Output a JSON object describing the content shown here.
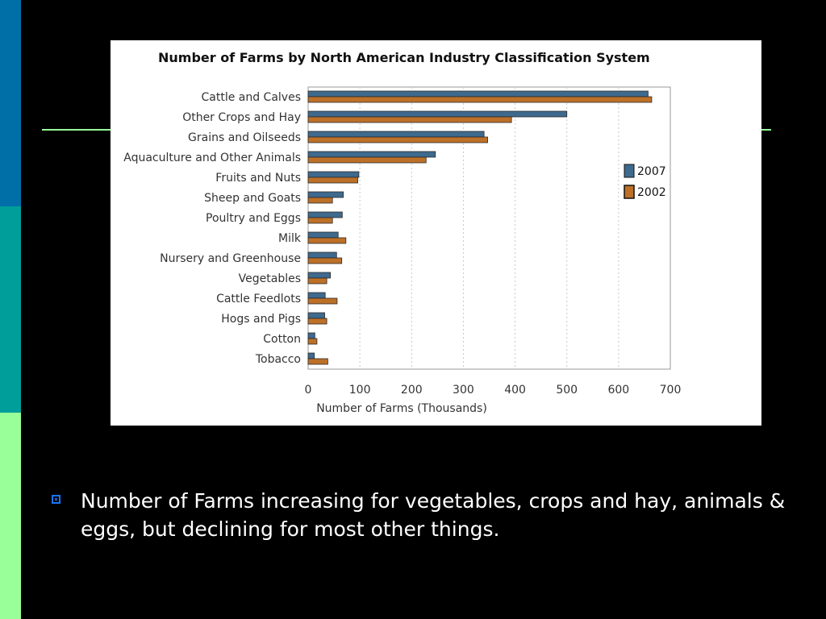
{
  "slide": {
    "bullet_text": "Number of Farms increasing for vegetables, crops and hay, animals & eggs, but declining for most other things."
  },
  "colors": {
    "series_2007": "#3f6a8e",
    "series_2002": "#bd7028",
    "accent_line": "#99ff99",
    "bullet": "#1a75ff"
  },
  "chart_data": {
    "type": "bar",
    "orientation": "horizontal",
    "title": "Number of Farms by North American Industry Classification System",
    "xlabel": "Number of Farms (Thousands)",
    "ylabel": "",
    "xlim": [
      0,
      700
    ],
    "xticks": [
      0,
      100,
      200,
      300,
      400,
      500,
      600,
      700
    ],
    "grid": "vertical dashed",
    "legend_position": "right",
    "categories": [
      "Cattle and Calves",
      "Other Crops and Hay",
      "Grains and Oilseeds",
      "Aquaculture and Other Animals",
      "Fruits and Nuts",
      "Sheep and Goats",
      "Poultry and Eggs",
      "Milk",
      "Nursery and Greenhouse",
      "Vegetables",
      "Cattle Feedlots",
      "Hogs and Pigs",
      "Cotton",
      "Tobacco"
    ],
    "series": [
      {
        "name": "2007",
        "values": [
          657,
          500,
          340,
          246,
          98,
          68,
          66,
          58,
          55,
          43,
          33,
          32,
          13,
          12
        ]
      },
      {
        "name": "2002",
        "values": [
          664,
          393,
          347,
          228,
          96,
          47,
          47,
          73,
          65,
          36,
          56,
          36,
          17,
          38
        ]
      }
    ]
  }
}
